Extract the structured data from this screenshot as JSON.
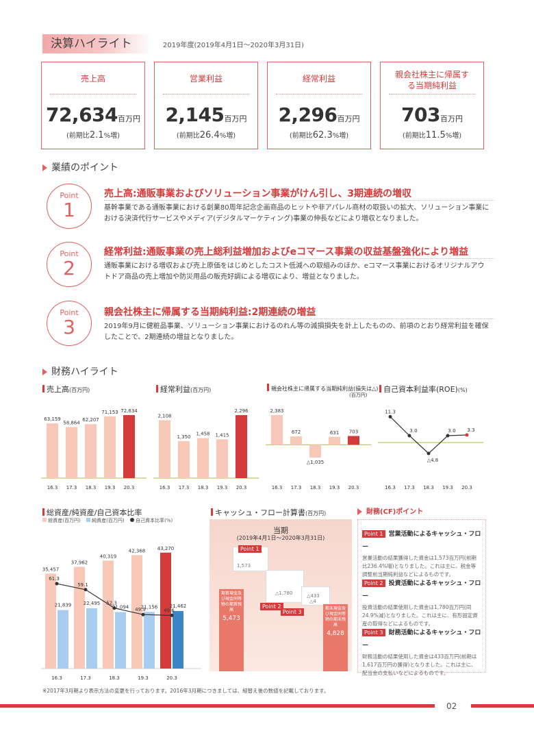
{
  "header": {
    "title": "決算ハイライト",
    "period": "2019年度(2019年4月1日〜2020年3月31日)"
  },
  "kpis": [
    {
      "label": "売上高",
      "value": "72,634",
      "unit": "百万円",
      "change_pre": "(前期比",
      "change_val": "2.1",
      "change_post": "%増)"
    },
    {
      "label": "営業利益",
      "value": "2,145",
      "unit": "百万円",
      "change_pre": "(前期比",
      "change_val": "26.4",
      "change_post": "%増)"
    },
    {
      "label": "経常利益",
      "value": "2,296",
      "unit": "百万円",
      "change_pre": "(前期比",
      "change_val": "62.3",
      "change_post": "%増)"
    },
    {
      "label": "親会社株主に帰属する当期純利益",
      "value": "703",
      "unit": "百万円",
      "change_pre": "(前期比",
      "change_val": "11.5",
      "change_post": "%増)"
    }
  ],
  "points_section": {
    "title": "業績のポイント"
  },
  "points": [
    {
      "tag": "Point",
      "num": "1",
      "title": "売上高:通販事業およびソリューション事業がけん引し、3期連続の増収",
      "body": "基幹事業である通販事業における創業80周年記念企画商品のヒットや非アパレル商材の取扱いの拡大、ソリューション事業における決済代行サービスやメディア(デジタルマーケティング)事業の伸長などにより増収となりました。"
    },
    {
      "tag": "Point",
      "num": "2",
      "title": "経常利益:通販事業の売上総利益増加およびeコマース事業の収益基盤強化により増益",
      "body": "通販事業における増収および売上原価をはじめとしたコスト低減への取組みのほか、eコマース事業におけるオリジナルアウトドア商品の売上増加や防災用品の販売好調による増収により、増益となりました。"
    },
    {
      "tag": "Point",
      "num": "3",
      "title": "親会社株主に帰属する当期純利益:2期連続の増益",
      "body": "2019年9月に健粧品事業、ソリューション事業におけるのれん等の減損損失を計上したものの、前項のとおり経常利益を確保したことで、2期連続の増益となりました。"
    }
  ],
  "financial_section": {
    "title": "財務ハイライト"
  },
  "colors": {
    "accent": "#d43b3b",
    "bar_light": "#f8c8b8",
    "bar_blue": "#a9cdee",
    "zero_line": "#b5b73a"
  },
  "chart_data": [
    {
      "type": "bar",
      "title": "売上高",
      "unit": "(百万円)",
      "categories": [
        "16.3",
        "17.3",
        "18.3",
        "19.3",
        "20.3"
      ],
      "values": [
        63159,
        58864,
        62207,
        71153,
        72634
      ],
      "labels": [
        "63,159",
        "58,864",
        "62,207",
        "71,153",
        "72,634"
      ],
      "highlight_last": true
    },
    {
      "type": "bar",
      "title": "経常利益",
      "unit": "(百万円)",
      "categories": [
        "16.3",
        "17.3",
        "18.3",
        "19.3",
        "20.3"
      ],
      "values": [
        2108,
        1350,
        1458,
        1415,
        2296
      ],
      "labels": [
        "2,108",
        "1,350",
        "1,458",
        "1,415",
        "2,296"
      ],
      "highlight_last": true
    },
    {
      "type": "bar",
      "title": "親会社株主に帰属する当期純利益(損失は△)",
      "unit": "(百万円)",
      "categories": [
        "16.3",
        "17.3",
        "18.3",
        "19.3",
        "20.3"
      ],
      "values": [
        2383,
        672,
        -1035,
        631,
        703
      ],
      "labels": [
        "2,383",
        "672",
        "△1,035",
        "631",
        "703"
      ],
      "highlight_last": true
    },
    {
      "type": "line",
      "title": "自己資本利益率(ROE)",
      "unit": "(%)",
      "categories": [
        "16.3",
        "17.3",
        "18.3",
        "19.3",
        "20.3"
      ],
      "values": [
        11.3,
        3.0,
        -4.8,
        3.0,
        3.3
      ],
      "labels": [
        "11.3",
        "3.0",
        "△4.8",
        "3.0",
        "3.3"
      ]
    },
    {
      "type": "bar",
      "title": "総資産/純資産/自己資本比率",
      "categories": [
        "16.3",
        "17.3",
        "18.3",
        "19.3",
        "20.3"
      ],
      "legend": [
        "総資産(百万円)",
        "純資産(百万円)",
        "自己資本比率(%)"
      ],
      "series": [
        {
          "name": "総資産(百万円)",
          "values": [
            35457,
            37962,
            40319,
            42368,
            43270
          ],
          "labels": [
            "35,457",
            "37,962",
            "40,319",
            "42,368",
            "43,270"
          ]
        },
        {
          "name": "純資産(百万円)",
          "values": [
            21839,
            22495,
            21094,
            21156,
            21462
          ],
          "labels": [
            "21,839",
            "22,495",
            "21,094",
            "21,156",
            "21,462"
          ]
        },
        {
          "name": "自己資本比率(%)",
          "type": "line",
          "values": [
            61.3,
            59.1,
            52.3,
            49.9,
            49.6
          ],
          "labels": [
            "61.3",
            "59.1",
            "52.3",
            "49.9",
            "49.6"
          ]
        }
      ]
    }
  ],
  "cashflow": {
    "title": "キャッシュ・フロー計算書",
    "unit": "(百万円)",
    "period_title": "当期",
    "period": "(2019年4月1日〜2020年3月31日)",
    "start_label": "期首現金及び現金同等物の期首残高",
    "start_value": "5,473",
    "end_label": "期末現金及び現金同等物の期末残高",
    "end_value": "4,828",
    "tags": [
      "Point 1",
      "Point 2",
      "Point 3"
    ],
    "op_value": "1,573",
    "inv_value": "△1,780",
    "fin_value": "△433",
    "other_value": "△4"
  },
  "cf_points": {
    "title": "財務(CF)ポイント",
    "items": [
      {
        "tag": "Point 1",
        "title": "営業活動によるキャッシュ・フロー",
        "body": "営業活動の結果獲得した資金は1,573百万円(前期比236.4%増)となりました。これは主に、税金等調整前当期純利益などによるものです。"
      },
      {
        "tag": "Point 2",
        "title": "投資活動によるキャッシュ・フロー",
        "body": "投資活動の結果使用した資金は1,780百万円(同24.9%減)となりました。これは主に、有形固定資産の取得などによるものです。"
      },
      {
        "tag": "Point 3",
        "title": "財務活動によるキャッシュ・フロー",
        "body": "財務活動の結果使用した資金は433百万円(前期は1,617百万円の獲得)となりました。これは主に、配当金の支払いなどによるものです。"
      }
    ]
  },
  "footnote": "※2017年3月期より表示方法の変更を行っております。2016年3月期につきましては、組替え後の数値を記載しております。",
  "page_number": "02"
}
